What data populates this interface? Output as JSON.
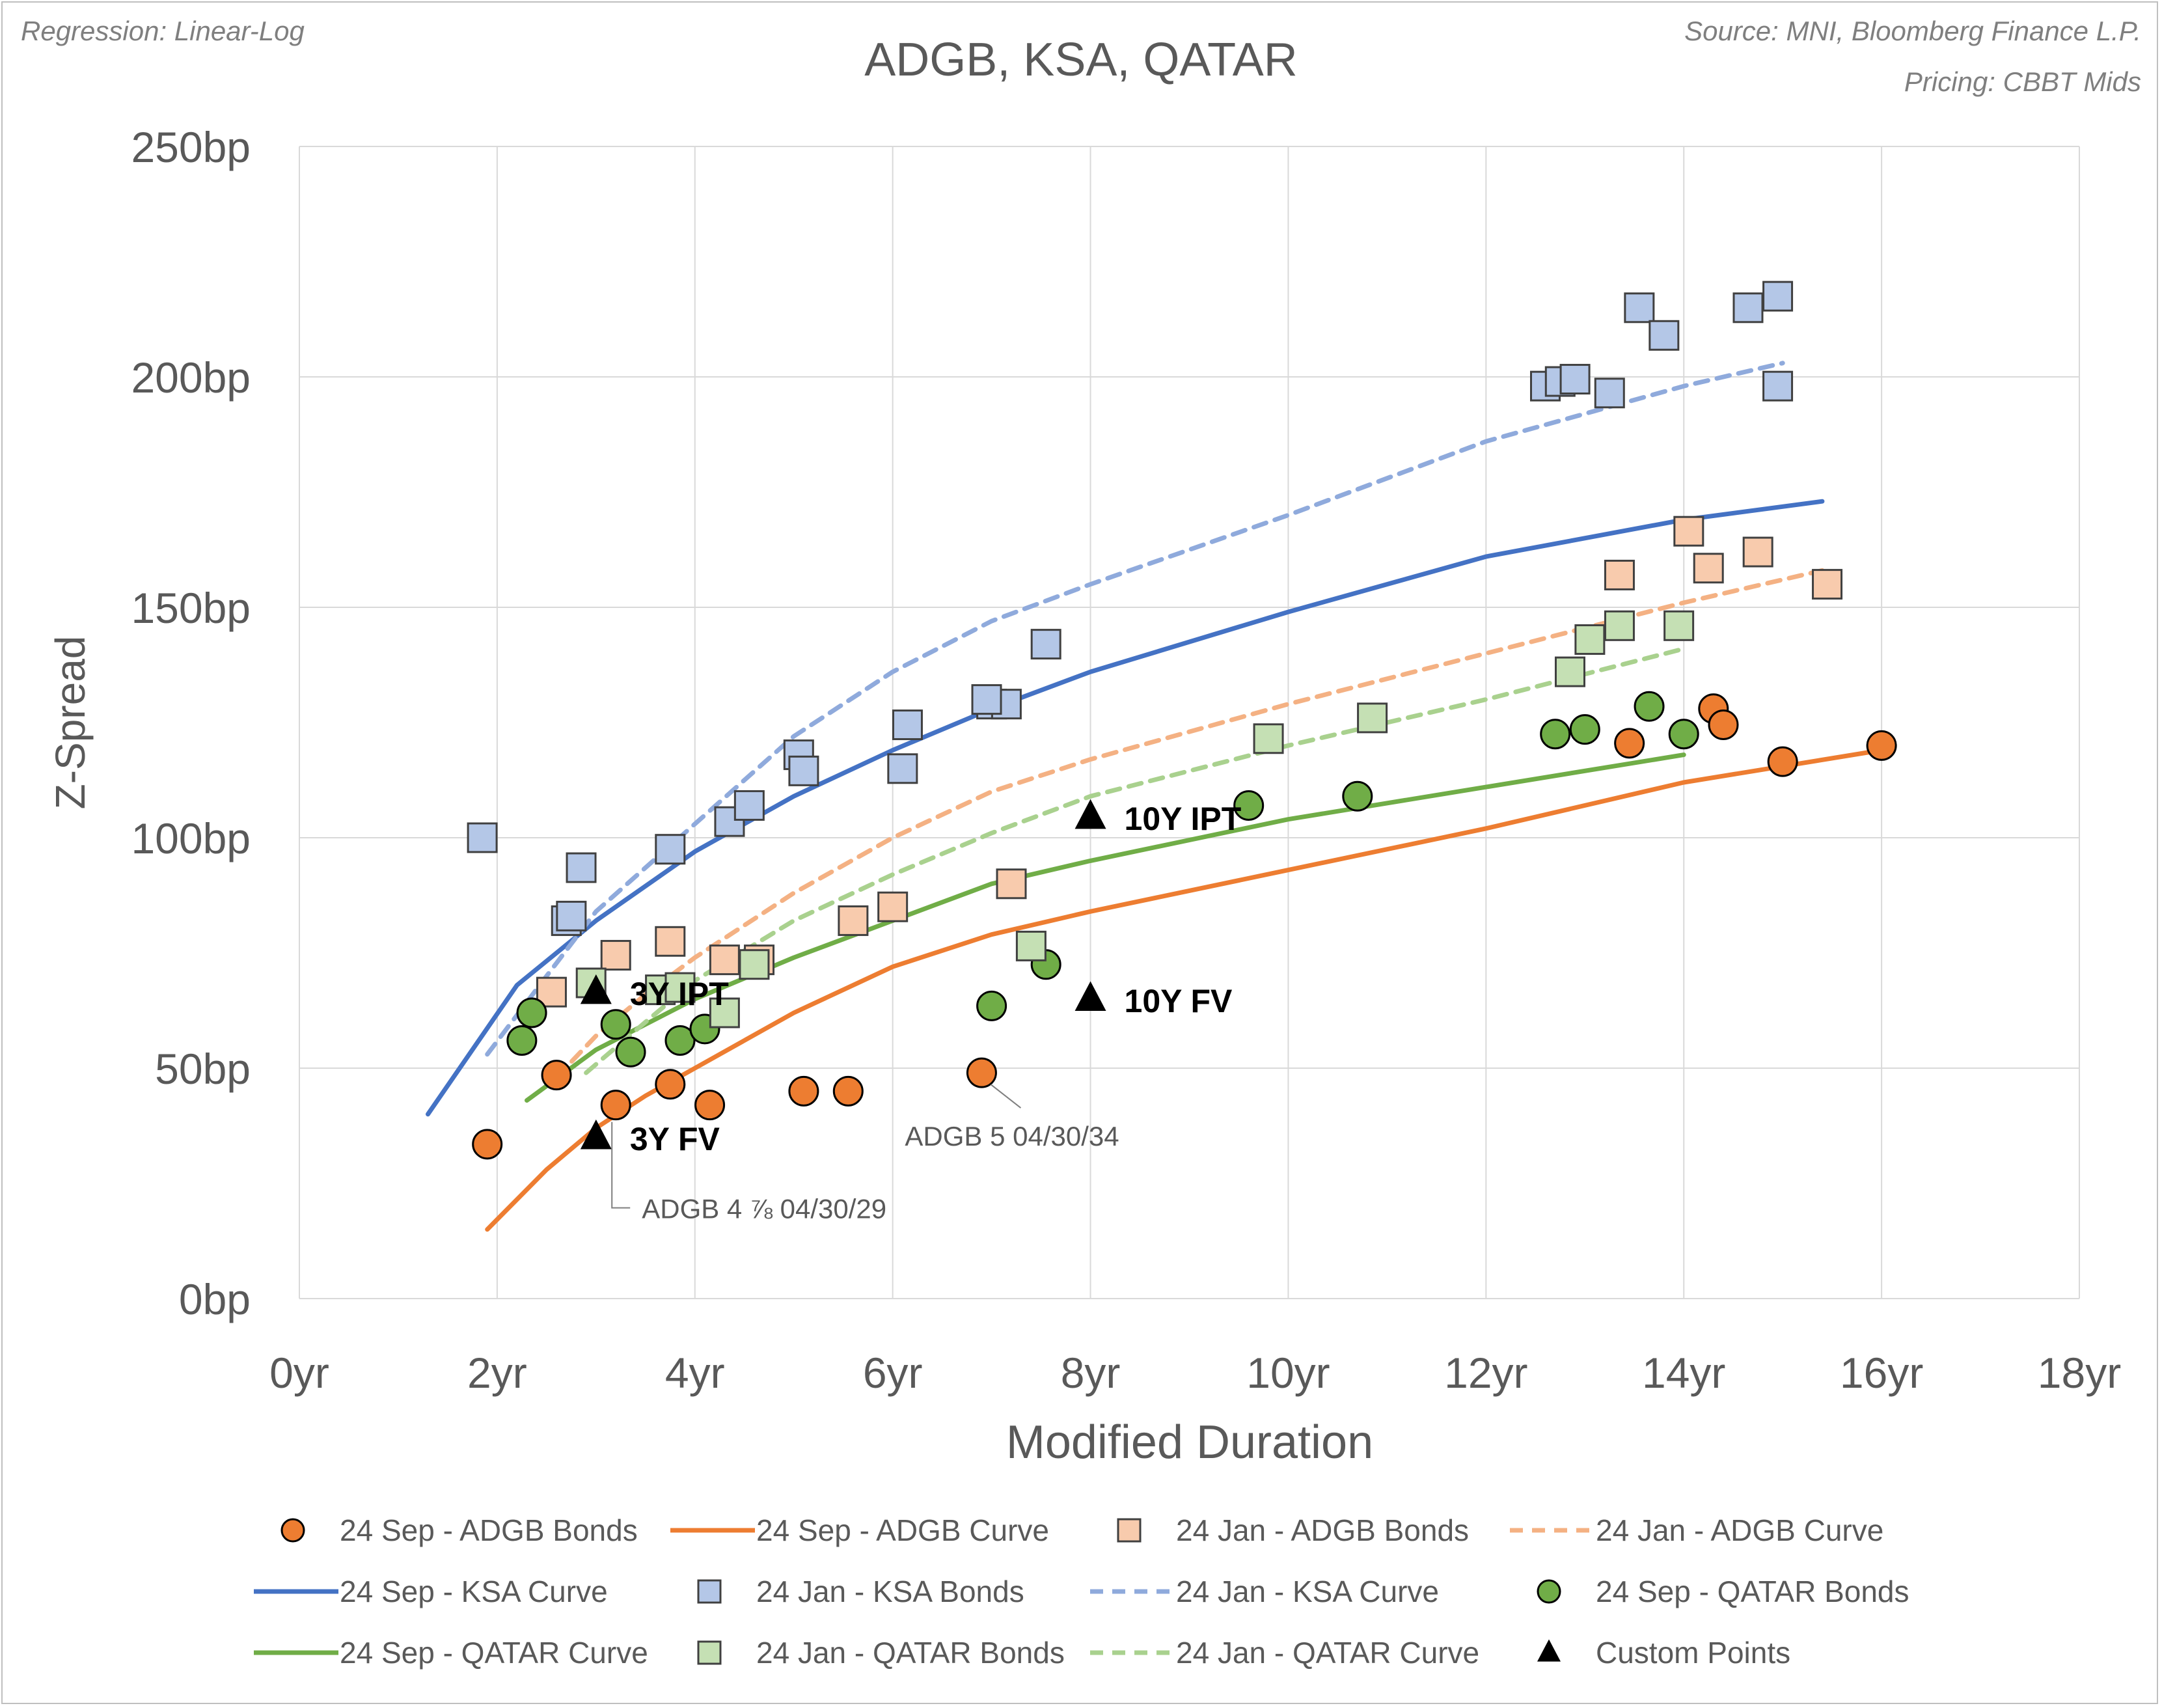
{
  "chart_data": {
    "type": "scatter",
    "title": "ADGB, KSA, QATAR",
    "regression_note": "Regression: Linear-Log",
    "source_note": "Source: MNI, Bloomberg Finance L.P.",
    "pricing_note": "Pricing: CBBT Mids",
    "xlabel": "Modified Duration",
    "ylabel": "Z-Spread",
    "xlim": [
      0,
      18
    ],
    "ylim": [
      0,
      250
    ],
    "x_ticks": [
      0,
      2,
      4,
      6,
      8,
      10,
      12,
      14,
      16,
      18
    ],
    "y_ticks": [
      0,
      50,
      100,
      150,
      200,
      250
    ],
    "x_tick_labels": [
      "0yr",
      "2yr",
      "4yr",
      "6yr",
      "8yr",
      "10yr",
      "12yr",
      "14yr",
      "16yr",
      "18yr"
    ],
    "y_tick_labels": [
      "0bp",
      "50bp",
      "100bp",
      "150bp",
      "200bp",
      "250bp"
    ],
    "grid": true,
    "legend_position": "bottom",
    "colors": {
      "adgb_sep": "#ED7D31",
      "adgb_jan": "#F8CBAD",
      "ksa_sep": "#4472C4",
      "ksa_jan": "#B4C7E7",
      "qatar_sep": "#70AD47",
      "qatar_jan": "#C5E0B4",
      "custom": "#000000",
      "grid": "#d9d9d9",
      "text": "#595959",
      "note": "#7f7f7f"
    },
    "series": [
      {
        "name": "24 Sep - ADGB Bonds",
        "kind": "scatter",
        "marker": "circle",
        "fill": "#ED7D31",
        "points": [
          [
            1.9,
            33.5
          ],
          [
            2.6,
            48.5
          ],
          [
            3.2,
            42
          ],
          [
            3.75,
            46.5
          ],
          [
            4.15,
            42
          ],
          [
            5.1,
            45
          ],
          [
            5.55,
            45
          ],
          [
            6.9,
            49
          ],
          [
            13.45,
            120.5
          ],
          [
            14.3,
            128
          ],
          [
            14.4,
            124.5
          ],
          [
            15.0,
            116.5
          ],
          [
            16.0,
            120
          ]
        ]
      },
      {
        "name": "24 Sep - ADGB Curve",
        "kind": "line",
        "stroke": "#ED7D31",
        "dash": false,
        "points": [
          [
            1.9,
            15
          ],
          [
            2.5,
            28
          ],
          [
            3.0,
            37
          ],
          [
            3.5,
            44
          ],
          [
            4.0,
            50
          ],
          [
            5.0,
            62
          ],
          [
            6.0,
            72
          ],
          [
            7.0,
            79
          ],
          [
            8.0,
            84
          ],
          [
            10.0,
            93
          ],
          [
            12.0,
            102
          ],
          [
            14.0,
            112
          ],
          [
            16.0,
            119
          ]
        ]
      },
      {
        "name": "24 Jan - ADGB Bonds",
        "kind": "scatter",
        "marker": "square",
        "fill": "#F8CBAD",
        "points": [
          [
            2.55,
            66.5
          ],
          [
            3.2,
            74.5
          ],
          [
            3.75,
            77.5
          ],
          [
            4.3,
            73.5
          ],
          [
            4.65,
            73.5
          ],
          [
            5.6,
            82
          ],
          [
            6.0,
            85
          ],
          [
            7.2,
            90
          ],
          [
            13.35,
            157
          ],
          [
            14.05,
            166.5
          ],
          [
            14.25,
            158.5
          ],
          [
            14.75,
            162
          ],
          [
            15.45,
            155
          ]
        ]
      },
      {
        "name": "24 Jan - ADGB Curve",
        "kind": "line",
        "stroke": "#F4B183",
        "dash": true,
        "points": [
          [
            2.6,
            48
          ],
          [
            3.0,
            57
          ],
          [
            3.5,
            66
          ],
          [
            4.0,
            74
          ],
          [
            5.0,
            88
          ],
          [
            6.0,
            100
          ],
          [
            7.0,
            110
          ],
          [
            8.0,
            117
          ],
          [
            10.0,
            129
          ],
          [
            12.0,
            140
          ],
          [
            14.0,
            151
          ],
          [
            15.4,
            158
          ]
        ]
      },
      {
        "name": "24 Sep - KSA Curve",
        "kind": "line",
        "stroke": "#4472C4",
        "dash": false,
        "points": [
          [
            1.3,
            40
          ],
          [
            2.2,
            68
          ],
          [
            3.0,
            82
          ],
          [
            4.0,
            97
          ],
          [
            5.0,
            109
          ],
          [
            6.0,
            119
          ],
          [
            7.0,
            128
          ],
          [
            8.0,
            136
          ],
          [
            10.0,
            149
          ],
          [
            12.0,
            161
          ],
          [
            14.0,
            169
          ],
          [
            15.4,
            173
          ]
        ]
      },
      {
        "name": "24 Jan - KSA Bonds",
        "kind": "scatter",
        "marker": "square",
        "fill": "#B4C7E7",
        "points": [
          [
            1.85,
            100
          ],
          [
            2.85,
            93.5
          ],
          [
            2.7,
            82
          ],
          [
            2.75,
            83
          ],
          [
            3.75,
            97.5
          ],
          [
            4.35,
            103.5
          ],
          [
            4.55,
            107
          ],
          [
            5.05,
            118
          ],
          [
            5.1,
            114.5
          ],
          [
            6.15,
            124.5
          ],
          [
            6.1,
            115
          ],
          [
            7.0,
            129
          ],
          [
            7.15,
            129
          ],
          [
            6.95,
            130
          ],
          [
            7.55,
            142
          ],
          [
            12.6,
            198
          ],
          [
            12.75,
            199
          ],
          [
            12.9,
            199.5
          ],
          [
            13.25,
            196.5
          ],
          [
            13.55,
            215
          ],
          [
            13.8,
            209
          ],
          [
            14.65,
            215
          ],
          [
            14.95,
            217.5
          ],
          [
            14.95,
            198
          ]
        ]
      },
      {
        "name": "24 Jan - KSA Curve",
        "kind": "line",
        "stroke": "#8FAADC",
        "dash": true,
        "points": [
          [
            1.9,
            53
          ],
          [
            2.5,
            70
          ],
          [
            3.0,
            84
          ],
          [
            4.0,
            103
          ],
          [
            5.0,
            122
          ],
          [
            6.0,
            136
          ],
          [
            7.0,
            147
          ],
          [
            8.0,
            155
          ],
          [
            10.0,
            170
          ],
          [
            12.0,
            186
          ],
          [
            14.0,
            198
          ],
          [
            15.0,
            203
          ]
        ]
      },
      {
        "name": "24 Sep - QATAR Bonds",
        "kind": "scatter",
        "marker": "circle",
        "fill": "#70AD47",
        "points": [
          [
            2.25,
            56
          ],
          [
            2.35,
            62
          ],
          [
            3.2,
            59.5
          ],
          [
            3.35,
            53.5
          ],
          [
            3.85,
            56
          ],
          [
            4.1,
            58.5
          ],
          [
            7.0,
            63.5
          ],
          [
            7.55,
            72.5
          ],
          [
            9.6,
            107
          ],
          [
            10.7,
            109
          ],
          [
            12.7,
            122.5
          ],
          [
            13.0,
            123.5
          ],
          [
            13.65,
            128.5
          ],
          [
            14.0,
            122.5
          ]
        ]
      },
      {
        "name": "24 Sep - QATAR Curve",
        "kind": "line",
        "stroke": "#70AD47",
        "dash": false,
        "points": [
          [
            2.3,
            43
          ],
          [
            3.0,
            54
          ],
          [
            4.0,
            65
          ],
          [
            5.0,
            74
          ],
          [
            6.0,
            82
          ],
          [
            7.0,
            90
          ],
          [
            8.0,
            95
          ],
          [
            10.0,
            104
          ],
          [
            12.0,
            111
          ],
          [
            14.0,
            118
          ]
        ]
      },
      {
        "name": "24 Jan - QATAR Bonds",
        "kind": "scatter",
        "marker": "square",
        "fill": "#C5E0B4",
        "points": [
          [
            2.95,
            68.5
          ],
          [
            3.65,
            67
          ],
          [
            3.85,
            67.5
          ],
          [
            4.3,
            62
          ],
          [
            4.6,
            72.5
          ],
          [
            7.4,
            76.5
          ],
          [
            9.8,
            121.5
          ],
          [
            10.85,
            126
          ],
          [
            12.85,
            136
          ],
          [
            13.05,
            143
          ],
          [
            13.35,
            146
          ],
          [
            13.95,
            146
          ]
        ]
      },
      {
        "name": "24 Jan - QATAR Curve",
        "kind": "line",
        "stroke": "#A9D18E",
        "dash": true,
        "points": [
          [
            2.9,
            49
          ],
          [
            3.5,
            60
          ],
          [
            4.0,
            69
          ],
          [
            5.0,
            82
          ],
          [
            6.0,
            92
          ],
          [
            7.0,
            101
          ],
          [
            8.0,
            109
          ],
          [
            10.0,
            120
          ],
          [
            12.0,
            130
          ],
          [
            14.0,
            141
          ]
        ]
      },
      {
        "name": "Custom Points",
        "kind": "scatter",
        "marker": "triangle",
        "fill": "#000000",
        "points": [
          [
            3.0,
            66.5
          ],
          [
            3.0,
            35
          ],
          [
            8.0,
            104.5
          ],
          [
            8.0,
            65
          ]
        ]
      }
    ],
    "custom_labels": [
      {
        "text": "3Y IPT",
        "x": 3.0,
        "y": 66.5
      },
      {
        "text": "3Y FV",
        "x": 3.0,
        "y": 35
      },
      {
        "text": "10Y IPT",
        "x": 8.0,
        "y": 104.5
      },
      {
        "text": "10Y FV",
        "x": 8.0,
        "y": 65
      }
    ],
    "annotations": [
      {
        "text": "ADGB 4 ⅞ 04/30/29",
        "x": 3.2,
        "y": 42
      },
      {
        "text": "ADGB 5 04/30/34",
        "x": 6.9,
        "y": 49
      }
    ]
  }
}
